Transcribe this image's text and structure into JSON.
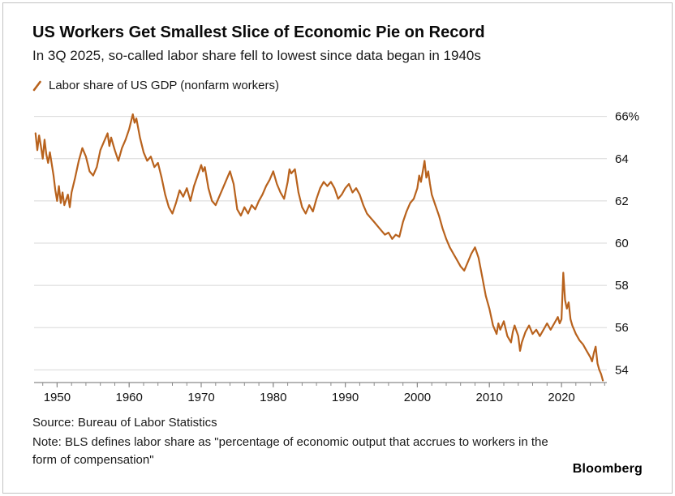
{
  "footer": {
    "source": "Source: Bureau of Labor Statistics",
    "note": "Note: BLS defines labor share as \"percentage of economic output that accrues to workers in the form of compensation\"",
    "brand": "Bloomberg"
  },
  "chart_data": {
    "type": "line",
    "title": "US Workers Get Smallest Slice of Economic Pie on Record",
    "subtitle": "In 3Q 2025, so-called labor share fell to lowest since data began in 1940s",
    "xlabel": "",
    "ylabel": "",
    "grid": true,
    "legend_position": "top-left",
    "y_axis_side": "right",
    "line_color": "#B8621D",
    "grid_color": "#d8d8d8",
    "axis_color": "#8a8a8a",
    "xlim": [
      1946.8,
      2026.3
    ],
    "ylim": [
      53.4,
      66.6
    ],
    "xticks": [
      1950,
      1960,
      1970,
      1980,
      1990,
      2000,
      2010,
      2020
    ],
    "yticks": [
      {
        "value": 66,
        "label": "66%"
      },
      {
        "value": 64,
        "label": "64"
      },
      {
        "value": 62,
        "label": "62"
      },
      {
        "value": 60,
        "label": "60"
      },
      {
        "value": 58,
        "label": "58"
      },
      {
        "value": 56,
        "label": "56"
      },
      {
        "value": 54,
        "label": "54"
      }
    ],
    "series": [
      {
        "name": "Labor share of US GDP (nonfarm workers)",
        "points": [
          [
            1947.0,
            65.2
          ],
          [
            1947.25,
            64.4
          ],
          [
            1947.5,
            65.1
          ],
          [
            1947.75,
            64.6
          ],
          [
            1948.0,
            64.0
          ],
          [
            1948.25,
            64.9
          ],
          [
            1948.5,
            64.2
          ],
          [
            1948.75,
            63.8
          ],
          [
            1949.0,
            64.3
          ],
          [
            1949.5,
            63.2
          ],
          [
            1949.75,
            62.5
          ],
          [
            1950.0,
            62.0
          ],
          [
            1950.25,
            62.7
          ],
          [
            1950.5,
            61.9
          ],
          [
            1950.75,
            62.4
          ],
          [
            1951.0,
            61.8
          ],
          [
            1951.5,
            62.3
          ],
          [
            1951.75,
            61.7
          ],
          [
            1952.0,
            62.4
          ],
          [
            1952.5,
            63.1
          ],
          [
            1953.0,
            63.9
          ],
          [
            1953.5,
            64.5
          ],
          [
            1954.0,
            64.1
          ],
          [
            1954.5,
            63.4
          ],
          [
            1955.0,
            63.2
          ],
          [
            1955.5,
            63.6
          ],
          [
            1956.0,
            64.4
          ],
          [
            1956.5,
            64.8
          ],
          [
            1957.0,
            65.2
          ],
          [
            1957.25,
            64.6
          ],
          [
            1957.5,
            65.0
          ],
          [
            1958.0,
            64.4
          ],
          [
            1958.5,
            63.9
          ],
          [
            1959.0,
            64.5
          ],
          [
            1959.5,
            64.9
          ],
          [
            1960.0,
            65.4
          ],
          [
            1960.5,
            66.1
          ],
          [
            1960.75,
            65.7
          ],
          [
            1961.0,
            65.9
          ],
          [
            1961.5,
            65.0
          ],
          [
            1962.0,
            64.3
          ],
          [
            1962.5,
            63.9
          ],
          [
            1963.0,
            64.1
          ],
          [
            1963.5,
            63.6
          ],
          [
            1964.0,
            63.8
          ],
          [
            1964.5,
            63.1
          ],
          [
            1965.0,
            62.3
          ],
          [
            1965.5,
            61.7
          ],
          [
            1966.0,
            61.4
          ],
          [
            1966.5,
            61.9
          ],
          [
            1967.0,
            62.5
          ],
          [
            1967.5,
            62.2
          ],
          [
            1968.0,
            62.6
          ],
          [
            1968.5,
            62.0
          ],
          [
            1969.0,
            62.7
          ],
          [
            1969.5,
            63.2
          ],
          [
            1970.0,
            63.7
          ],
          [
            1970.25,
            63.4
          ],
          [
            1970.5,
            63.6
          ],
          [
            1971.0,
            62.6
          ],
          [
            1971.5,
            62.0
          ],
          [
            1972.0,
            61.8
          ],
          [
            1972.5,
            62.2
          ],
          [
            1973.0,
            62.6
          ],
          [
            1973.5,
            63.0
          ],
          [
            1974.0,
            63.4
          ],
          [
            1974.5,
            62.8
          ],
          [
            1975.0,
            61.6
          ],
          [
            1975.5,
            61.3
          ],
          [
            1976.0,
            61.7
          ],
          [
            1976.5,
            61.4
          ],
          [
            1977.0,
            61.8
          ],
          [
            1977.5,
            61.6
          ],
          [
            1978.0,
            62.0
          ],
          [
            1978.5,
            62.3
          ],
          [
            1979.0,
            62.7
          ],
          [
            1979.5,
            63.0
          ],
          [
            1980.0,
            63.4
          ],
          [
            1980.5,
            62.8
          ],
          [
            1981.0,
            62.4
          ],
          [
            1981.5,
            62.1
          ],
          [
            1982.0,
            62.9
          ],
          [
            1982.25,
            63.5
          ],
          [
            1982.5,
            63.3
          ],
          [
            1983.0,
            63.5
          ],
          [
            1983.5,
            62.4
          ],
          [
            1984.0,
            61.7
          ],
          [
            1984.5,
            61.4
          ],
          [
            1985.0,
            61.8
          ],
          [
            1985.5,
            61.5
          ],
          [
            1986.0,
            62.1
          ],
          [
            1986.5,
            62.6
          ],
          [
            1987.0,
            62.9
          ],
          [
            1987.5,
            62.7
          ],
          [
            1988.0,
            62.9
          ],
          [
            1988.5,
            62.6
          ],
          [
            1989.0,
            62.1
          ],
          [
            1989.5,
            62.3
          ],
          [
            1990.0,
            62.6
          ],
          [
            1990.5,
            62.8
          ],
          [
            1991.0,
            62.4
          ],
          [
            1991.5,
            62.6
          ],
          [
            1992.0,
            62.3
          ],
          [
            1992.5,
            61.8
          ],
          [
            1993.0,
            61.4
          ],
          [
            1993.5,
            61.2
          ],
          [
            1994.0,
            61.0
          ],
          [
            1994.5,
            60.8
          ],
          [
            1995.0,
            60.6
          ],
          [
            1995.5,
            60.4
          ],
          [
            1996.0,
            60.5
          ],
          [
            1996.5,
            60.2
          ],
          [
            1997.0,
            60.4
          ],
          [
            1997.5,
            60.3
          ],
          [
            1998.0,
            61.0
          ],
          [
            1998.5,
            61.5
          ],
          [
            1999.0,
            61.9
          ],
          [
            1999.5,
            62.1
          ],
          [
            2000.0,
            62.6
          ],
          [
            2000.25,
            63.2
          ],
          [
            2000.5,
            62.9
          ],
          [
            2000.75,
            63.4
          ],
          [
            2001.0,
            63.9
          ],
          [
            2001.25,
            63.1
          ],
          [
            2001.5,
            63.4
          ],
          [
            2001.75,
            62.8
          ],
          [
            2002.0,
            62.3
          ],
          [
            2002.5,
            61.8
          ],
          [
            2003.0,
            61.3
          ],
          [
            2003.5,
            60.7
          ],
          [
            2004.0,
            60.2
          ],
          [
            2004.5,
            59.8
          ],
          [
            2005.0,
            59.5
          ],
          [
            2005.5,
            59.2
          ],
          [
            2006.0,
            58.9
          ],
          [
            2006.5,
            58.7
          ],
          [
            2007.0,
            59.1
          ],
          [
            2007.5,
            59.5
          ],
          [
            2008.0,
            59.8
          ],
          [
            2008.5,
            59.3
          ],
          [
            2009.0,
            58.4
          ],
          [
            2009.5,
            57.5
          ],
          [
            2010.0,
            56.9
          ],
          [
            2010.5,
            56.1
          ],
          [
            2011.0,
            55.7
          ],
          [
            2011.25,
            56.2
          ],
          [
            2011.5,
            55.9
          ],
          [
            2012.0,
            56.3
          ],
          [
            2012.5,
            55.6
          ],
          [
            2013.0,
            55.3
          ],
          [
            2013.25,
            55.8
          ],
          [
            2013.5,
            56.1
          ],
          [
            2014.0,
            55.6
          ],
          [
            2014.25,
            54.9
          ],
          [
            2014.5,
            55.3
          ],
          [
            2015.0,
            55.8
          ],
          [
            2015.5,
            56.1
          ],
          [
            2016.0,
            55.7
          ],
          [
            2016.5,
            55.9
          ],
          [
            2017.0,
            55.6
          ],
          [
            2017.5,
            55.9
          ],
          [
            2018.0,
            56.2
          ],
          [
            2018.5,
            55.9
          ],
          [
            2019.0,
            56.2
          ],
          [
            2019.5,
            56.5
          ],
          [
            2019.75,
            56.2
          ],
          [
            2020.0,
            56.4
          ],
          [
            2020.25,
            58.6
          ],
          [
            2020.5,
            57.3
          ],
          [
            2020.75,
            56.9
          ],
          [
            2021.0,
            57.2
          ],
          [
            2021.25,
            56.4
          ],
          [
            2021.5,
            56.1
          ],
          [
            2022.0,
            55.7
          ],
          [
            2022.5,
            55.4
          ],
          [
            2023.0,
            55.2
          ],
          [
            2023.5,
            54.9
          ],
          [
            2024.0,
            54.6
          ],
          [
            2024.25,
            54.4
          ],
          [
            2024.5,
            54.8
          ],
          [
            2024.75,
            55.1
          ],
          [
            2025.0,
            54.3
          ],
          [
            2025.25,
            54.0
          ],
          [
            2025.5,
            53.8
          ],
          [
            2025.75,
            53.5
          ]
        ]
      }
    ]
  }
}
